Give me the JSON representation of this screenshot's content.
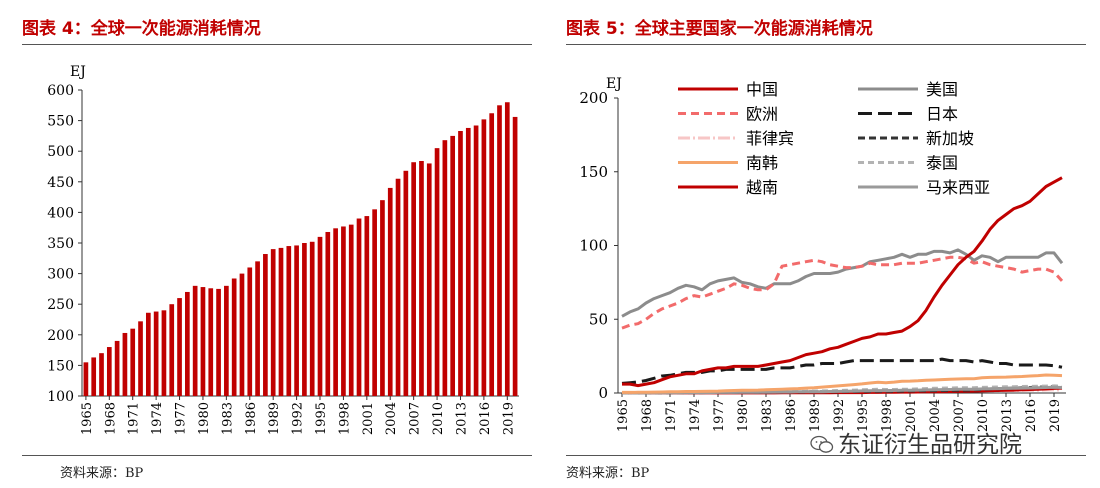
{
  "left_panel": {
    "title": "图表 4：全球一次能源消耗情况",
    "source": "资料来源：BP"
  },
  "right_panel": {
    "title": "图表 5：全球主要国家一次能源消耗情况",
    "source": "资料来源：BP"
  },
  "watermark": {
    "text": "东证衍生品研究院",
    "icon": "wechat-icon"
  },
  "colors": {
    "accent": "#c00000",
    "bar": "#c00000"
  },
  "chart_data": [
    {
      "type": "bar",
      "ylabel": "EJ",
      "ylim": [
        100,
        600
      ],
      "yticks": [
        100,
        150,
        200,
        250,
        300,
        350,
        400,
        450,
        500,
        550,
        600
      ],
      "grid": false,
      "x": [
        1965,
        1966,
        1967,
        1968,
        1969,
        1970,
        1971,
        1972,
        1973,
        1974,
        1975,
        1976,
        1977,
        1978,
        1979,
        1980,
        1981,
        1982,
        1983,
        1984,
        1985,
        1986,
        1987,
        1988,
        1989,
        1990,
        1991,
        1992,
        1993,
        1994,
        1995,
        1996,
        1997,
        1998,
        1999,
        2000,
        2001,
        2002,
        2003,
        2004,
        2005,
        2006,
        2007,
        2008,
        2009,
        2010,
        2011,
        2012,
        2013,
        2014,
        2015,
        2016,
        2017,
        2018,
        2019,
        2020
      ],
      "xticks": [
        "1965",
        "1968",
        "1971",
        "1974",
        "1977",
        "1980",
        "1983",
        "1986",
        "1989",
        "1992",
        "1995",
        "1998",
        "2001",
        "2004",
        "2007",
        "2010",
        "2013",
        "2016",
        "2019"
      ],
      "values": [
        155,
        163,
        170,
        180,
        190,
        203,
        210,
        222,
        236,
        238,
        240,
        250,
        260,
        270,
        280,
        278,
        276,
        275,
        280,
        292,
        300,
        310,
        320,
        332,
        340,
        342,
        345,
        346,
        350,
        352,
        360,
        368,
        374,
        377,
        380,
        390,
        394,
        405,
        420,
        440,
        455,
        468,
        482,
        484,
        480,
        505,
        518,
        525,
        533,
        538,
        542,
        552,
        562,
        575,
        580,
        556
      ]
    },
    {
      "type": "line",
      "ylabel": "EJ",
      "ylim": [
        0,
        200
      ],
      "yticks": [
        0,
        50,
        100,
        150,
        200
      ],
      "grid": false,
      "legend_position": "top",
      "x": [
        1965,
        1966,
        1967,
        1968,
        1969,
        1970,
        1971,
        1972,
        1973,
        1974,
        1975,
        1976,
        1977,
        1978,
        1979,
        1980,
        1981,
        1982,
        1983,
        1984,
        1985,
        1986,
        1987,
        1988,
        1989,
        1990,
        1991,
        1992,
        1993,
        1994,
        1995,
        1996,
        1997,
        1998,
        1999,
        2000,
        2001,
        2002,
        2003,
        2004,
        2005,
        2006,
        2007,
        2008,
        2009,
        2010,
        2011,
        2012,
        2013,
        2014,
        2015,
        2016,
        2017,
        2018,
        2019,
        2020
      ],
      "xticks": [
        "1965",
        "1968",
        "1971",
        "1974",
        "1977",
        "1980",
        "1983",
        "1986",
        "1989",
        "1992",
        "1995",
        "1998",
        "2001",
        "2004",
        "2007",
        "2010",
        "2013",
        "2016",
        "2019"
      ],
      "series": [
        {
          "name": "中国",
          "color": "#c00000",
          "dash": "solid",
          "values": [
            6,
            6,
            5,
            6,
            7,
            9,
            11,
            12,
            13,
            13,
            15,
            16,
            17,
            17,
            18,
            18,
            18,
            18,
            19,
            20,
            21,
            22,
            24,
            26,
            27,
            28,
            30,
            31,
            33,
            35,
            37,
            38,
            40,
            40,
            41,
            42,
            45,
            49,
            56,
            65,
            73,
            80,
            87,
            92,
            96,
            103,
            111,
            117,
            121,
            125,
            127,
            130,
            135,
            140,
            143,
            146
          ]
        },
        {
          "name": "欧洲",
          "color": "#f26b6b",
          "dash": "8,5",
          "values": [
            44,
            46,
            47,
            50,
            54,
            57,
            59,
            61,
            64,
            66,
            65,
            67,
            69,
            71,
            74,
            73,
            71,
            70,
            70,
            74,
            86,
            87,
            88,
            89,
            90,
            89,
            87,
            86,
            85,
            85,
            86,
            88,
            87,
            87,
            87,
            88,
            88,
            88,
            89,
            90,
            91,
            92,
            92,
            91,
            88,
            89,
            87,
            86,
            85,
            84,
            82,
            83,
            84,
            84,
            82,
            76
          ]
        },
        {
          "name": "菲律宾",
          "color": "#f7c6c6",
          "dash": "12,3,2,3",
          "values": [
            0.3,
            0.3,
            0.3,
            0.3,
            0.4,
            0.4,
            0.4,
            0.5,
            0.5,
            0.5,
            0.5,
            0.6,
            0.6,
            0.6,
            0.6,
            0.6,
            0.6,
            0.6,
            0.7,
            0.7,
            0.7,
            0.8,
            0.8,
            0.8,
            0.9,
            0.9,
            0.9,
            1,
            1,
            1,
            1.1,
            1.1,
            1.2,
            1.2,
            1.2,
            1.2,
            1.2,
            1.3,
            1.3,
            1.3,
            1.3,
            1.3,
            1.4,
            1.4,
            1.4,
            1.5,
            1.5,
            1.6,
            1.6,
            1.7,
            1.8,
            1.9,
            2,
            2.1,
            2.2,
            2
          ]
        },
        {
          "name": "南韩",
          "color": "#f5a46a",
          "dash": "solid",
          "values": [
            0.4,
            0.4,
            0.5,
            0.5,
            0.6,
            0.7,
            0.8,
            0.9,
            1,
            1,
            1.1,
            1.2,
            1.3,
            1.5,
            1.7,
            1.8,
            1.9,
            2,
            2.2,
            2.4,
            2.6,
            2.8,
            3,
            3.3,
            3.6,
            4,
            4.4,
            4.8,
            5.3,
            5.7,
            6.2,
            6.8,
            7.3,
            7,
            7.4,
            8,
            8.1,
            8.3,
            8.6,
            8.8,
            9.1,
            9.3,
            9.5,
            9.6,
            9.7,
            10.3,
            10.6,
            10.7,
            10.8,
            11,
            11.2,
            11.5,
            11.8,
            12.2,
            12.1,
            11.8
          ]
        },
        {
          "name": "越南",
          "color": "#c00000",
          "dash": "solid",
          "values": [
            0.1,
            0.1,
            0.1,
            0.1,
            0.1,
            0.1,
            0.1,
            0.1,
            0.1,
            0.1,
            0.1,
            0.1,
            0.1,
            0.1,
            0.1,
            0.1,
            0.1,
            0.1,
            0.1,
            0.1,
            0.2,
            0.2,
            0.2,
            0.2,
            0.2,
            0.2,
            0.2,
            0.3,
            0.3,
            0.3,
            0.3,
            0.4,
            0.4,
            0.5,
            0.5,
            0.6,
            0.6,
            0.7,
            0.8,
            0.8,
            0.9,
            1,
            1.1,
            1.2,
            1.3,
            1.4,
            1.6,
            1.7,
            1.8,
            2,
            2.2,
            2.4,
            2.6,
            2.8,
            3.1,
            3.3
          ]
        },
        {
          "name": "美国",
          "color": "#8c8c8c",
          "dash": "solid",
          "values": [
            52,
            55,
            57,
            61,
            64,
            66,
            68,
            71,
            73,
            72,
            70,
            74,
            76,
            77,
            78,
            75,
            74,
            72,
            71,
            74,
            74,
            74,
            76,
            79,
            81,
            81,
            81,
            82,
            84,
            85,
            86,
            89,
            90,
            91,
            92,
            94,
            92,
            94,
            94,
            96,
            96,
            95,
            97,
            94,
            90,
            93,
            92,
            89,
            92,
            92,
            92,
            92,
            92,
            95,
            95,
            88
          ]
        },
        {
          "name": "日本",
          "color": "#1a1a1a",
          "dash": "14,6",
          "values": [
            6.5,
            7,
            7.5,
            8.5,
            10,
            11.5,
            12,
            13,
            14,
            14,
            14,
            15,
            15,
            16,
            16,
            16,
            16,
            16,
            16,
            17,
            17,
            17,
            18,
            19,
            19,
            20,
            20,
            20,
            21,
            22,
            22,
            22,
            22,
            22,
            22,
            22,
            22,
            22,
            22,
            22,
            23,
            22,
            22,
            22,
            21,
            22,
            21,
            20,
            20,
            19,
            19,
            19,
            19,
            19,
            18.5,
            17.5
          ]
        },
        {
          "name": "新加坡",
          "color": "#333333",
          "dash": "7,4",
          "values": [
            0.1,
            0.1,
            0.1,
            0.1,
            0.2,
            0.2,
            0.2,
            0.3,
            0.3,
            0.3,
            0.3,
            0.4,
            0.4,
            0.4,
            0.4,
            0.5,
            0.5,
            0.5,
            0.5,
            0.6,
            0.6,
            0.6,
            0.7,
            0.7,
            0.8,
            0.8,
            0.9,
            0.9,
            1,
            1,
            1.1,
            1.1,
            1.2,
            1.2,
            1.2,
            1.3,
            1.4,
            1.5,
            1.5,
            1.6,
            1.7,
            1.8,
            1.9,
            2,
            2.2,
            2.4,
            2.7,
            2.9,
            3.1,
            3.3,
            3.5,
            3.7,
            3.9,
            4.1,
            4.3,
            4.2
          ]
        },
        {
          "name": "泰国",
          "color": "#b3b3b3",
          "dash": "6,4",
          "values": [
            0.2,
            0.2,
            0.2,
            0.3,
            0.3,
            0.3,
            0.4,
            0.4,
            0.5,
            0.5,
            0.5,
            0.6,
            0.6,
            0.7,
            0.7,
            0.7,
            0.8,
            0.8,
            0.8,
            0.9,
            1,
            1,
            1.1,
            1.2,
            1.3,
            1.4,
            1.5,
            1.7,
            1.8,
            2,
            2.2,
            2.4,
            2.5,
            2.4,
            2.4,
            2.5,
            2.6,
            2.8,
            3,
            3.2,
            3.3,
            3.4,
            3.5,
            3.6,
            3.6,
            3.8,
            3.9,
            4.1,
            4.2,
            4.3,
            4.4,
            4.5,
            4.6,
            4.7,
            4.8,
            4.6
          ]
        },
        {
          "name": "马来西亚",
          "color": "#9a9a9a",
          "dash": "solid",
          "values": [
            0.1,
            0.1,
            0.1,
            0.1,
            0.2,
            0.2,
            0.2,
            0.2,
            0.3,
            0.3,
            0.3,
            0.3,
            0.4,
            0.4,
            0.4,
            0.5,
            0.5,
            0.5,
            0.6,
            0.6,
            0.7,
            0.7,
            0.8,
            0.8,
            0.9,
            0.9,
            1,
            1.1,
            1.2,
            1.3,
            1.4,
            1.5,
            1.6,
            1.6,
            1.7,
            1.8,
            1.9,
            2,
            2.1,
            2.2,
            2.3,
            2.4,
            2.5,
            2.6,
            2.6,
            2.8,
            2.9,
            3,
            3.1,
            3.2,
            3.3,
            3.4,
            3.5,
            3.7,
            3.9,
            3.7
          ]
        }
      ]
    }
  ]
}
